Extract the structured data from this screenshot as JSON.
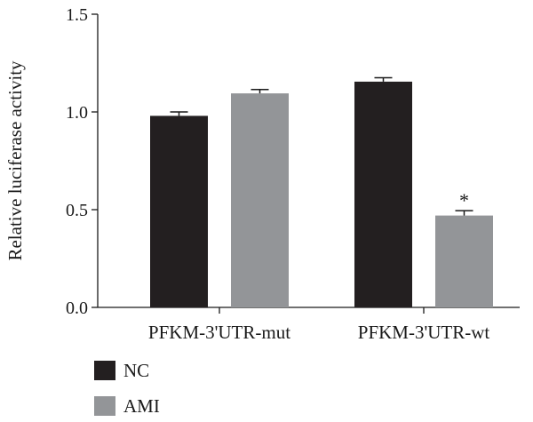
{
  "chart_data": {
    "type": "bar",
    "title": "",
    "xlabel": "",
    "ylabel": "Relative luciferase activity",
    "ylim": [
      0,
      1.5
    ],
    "yticks": [
      0.0,
      0.5,
      1.0,
      1.5
    ],
    "ytick_labels": [
      "0.0",
      "0.5",
      "1.0",
      "1.5"
    ],
    "categories": [
      "PFKM-3'UTR-mut",
      "PFKM-3'UTR-wt"
    ],
    "series": [
      {
        "name": "NC",
        "values": [
          0.98,
          1.155
        ],
        "errors": [
          0.02,
          0.02
        ],
        "color": "#231f20"
      },
      {
        "name": "AMI",
        "values": [
          1.095,
          0.47
        ],
        "errors": [
          0.02,
          0.025
        ],
        "color": "#939598"
      }
    ],
    "annotations": [
      {
        "text": "*",
        "category_index": 1,
        "series_index": 1
      }
    ],
    "legend_position": "bottom-left",
    "grid": false
  }
}
